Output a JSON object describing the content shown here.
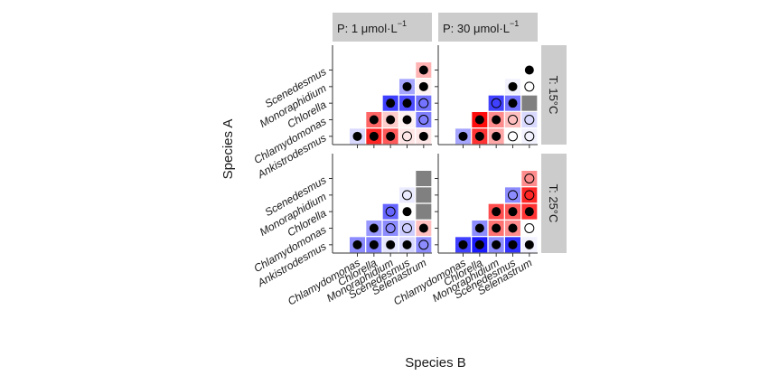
{
  "chart_data": {
    "type": "heatmap",
    "xlabel": "Species B",
    "ylabel": "Species A",
    "species": [
      "Ankistrodesmus",
      "Chlamydomonas",
      "Chlorella",
      "Monoraphidium",
      "Scenedesmus",
      "Selenastrum"
    ],
    "x_categories": [
      "Chlamydomonas",
      "Chlorella",
      "Monoraphidium",
      "Scenedesmus",
      "Selenastrum"
    ],
    "y_categories": [
      "Ankistrodesmus",
      "Chlamydomonas",
      "Chlorella",
      "Monoraphidium",
      "Scenedesmus"
    ],
    "colors": {
      "negative": "#0000ff",
      "positive": "#ff0000",
      "missing": "#808080",
      "strip": "#cccccc",
      "frame": "#333333"
    },
    "columns": [
      {
        "prefix": "P: 1 μmol·L",
        "superscript": "−1"
      },
      {
        "prefix": "P: 30 μmol·L",
        "superscript": "−1"
      }
    ],
    "rows": [
      {
        "label": "T: 15°C"
      },
      {
        "label": "T: 25°C"
      }
    ],
    "note": "each cell: x = Species B, y = Species A, value = signed interaction strength (negative blue, positive red), point = filled or open circle",
    "panels": [
      {
        "column": "P: 1 μmol·L−1",
        "row": "T: 15°C",
        "cells": [
          {
            "x": "Chlamydomonas",
            "y": "Ankistrodesmus",
            "value": -0.15,
            "point": "filled"
          },
          {
            "x": "Chlorella",
            "y": "Ankistrodesmus",
            "value": 0.85,
            "point": "filled"
          },
          {
            "x": "Monoraphidium",
            "y": "Ankistrodesmus",
            "value": 0.65,
            "point": "filled"
          },
          {
            "x": "Scenedesmus",
            "y": "Ankistrodesmus",
            "value": 0.1,
            "point": "open"
          },
          {
            "x": "Selenastrum",
            "y": "Ankistrodesmus",
            "value": 0.1,
            "point": "filled"
          },
          {
            "x": "Chlorella",
            "y": "Chlamydomonas",
            "value": 0.6,
            "point": "filled"
          },
          {
            "x": "Monoraphidium",
            "y": "Chlamydomonas",
            "value": 0.2,
            "point": "filled"
          },
          {
            "x": "Scenedesmus",
            "y": "Chlamydomonas",
            "value": 0.05,
            "point": "filled"
          },
          {
            "x": "Selenastrum",
            "y": "Chlamydomonas",
            "value": -0.5,
            "point": "open"
          },
          {
            "x": "Monoraphidium",
            "y": "Chlorella",
            "value": -0.75,
            "point": "filled"
          },
          {
            "x": "Scenedesmus",
            "y": "Chlorella",
            "value": -0.7,
            "point": "filled"
          },
          {
            "x": "Selenastrum",
            "y": "Chlorella",
            "value": -0.55,
            "point": "open"
          },
          {
            "x": "Scenedesmus",
            "y": "Monoraphidium",
            "value": -0.35,
            "point": "filled"
          },
          {
            "x": "Selenastrum",
            "y": "Monoraphidium",
            "value": 0.05,
            "point": "filled"
          },
          {
            "x": "Selenastrum",
            "y": "Scenedesmus",
            "value": 0.3,
            "point": "filled"
          }
        ]
      },
      {
        "column": "P: 30 μmol·L−1",
        "row": "T: 15°C",
        "cells": [
          {
            "x": "Chlamydomonas",
            "y": "Ankistrodesmus",
            "value": -0.35,
            "point": "filled"
          },
          {
            "x": "Chlorella",
            "y": "Ankistrodesmus",
            "value": 0.8,
            "point": "filled"
          },
          {
            "x": "Monoraphidium",
            "y": "Ankistrodesmus",
            "value": 0.35,
            "point": "filled"
          },
          {
            "x": "Scenedesmus",
            "y": "Ankistrodesmus",
            "value": 0.0,
            "point": "open"
          },
          {
            "x": "Selenastrum",
            "y": "Ankistrodesmus",
            "value": -0.05,
            "point": "open"
          },
          {
            "x": "Chlorella",
            "y": "Chlamydomonas",
            "value": 0.95,
            "point": "filled"
          },
          {
            "x": "Monoraphidium",
            "y": "Chlamydomonas",
            "value": 0.45,
            "point": "filled"
          },
          {
            "x": "Scenedesmus",
            "y": "Chlamydomonas",
            "value": 0.25,
            "point": "open"
          },
          {
            "x": "Selenastrum",
            "y": "Chlamydomonas",
            "value": -0.15,
            "point": "open"
          },
          {
            "x": "Monoraphidium",
            "y": "Chlorella",
            "value": -0.75,
            "point": "open"
          },
          {
            "x": "Scenedesmus",
            "y": "Chlorella",
            "value": -0.55,
            "point": "filled"
          },
          {
            "x": "Selenastrum",
            "y": "Chlorella",
            "value": null,
            "point": "none"
          },
          {
            "x": "Scenedesmus",
            "y": "Monoraphidium",
            "value": -0.05,
            "point": "filled"
          },
          {
            "x": "Selenastrum",
            "y": "Monoraphidium",
            "value": 0.0,
            "point": "open"
          },
          {
            "x": "Selenastrum",
            "y": "Scenedesmus",
            "value": 0.0,
            "point": "filled"
          }
        ]
      },
      {
        "column": "P: 1 μmol·L−1",
        "row": "T: 25°C",
        "cells": [
          {
            "x": "Chlamydomonas",
            "y": "Ankistrodesmus",
            "value": -0.45,
            "point": "filled"
          },
          {
            "x": "Chlorella",
            "y": "Ankistrodesmus",
            "value": -0.5,
            "point": "filled"
          },
          {
            "x": "Monoraphidium",
            "y": "Ankistrodesmus",
            "value": -0.1,
            "point": "filled"
          },
          {
            "x": "Scenedesmus",
            "y": "Ankistrodesmus",
            "value": -0.15,
            "point": "filled"
          },
          {
            "x": "Selenastrum",
            "y": "Ankistrodesmus",
            "value": -0.45,
            "point": "open"
          },
          {
            "x": "Chlorella",
            "y": "Chlamydomonas",
            "value": -0.4,
            "point": "filled"
          },
          {
            "x": "Monoraphidium",
            "y": "Chlamydomonas",
            "value": -0.45,
            "point": "open"
          },
          {
            "x": "Scenedesmus",
            "y": "Chlamydomonas",
            "value": -0.2,
            "point": "open"
          },
          {
            "x": "Selenastrum",
            "y": "Chlamydomonas",
            "value": 0.25,
            "point": "filled"
          },
          {
            "x": "Monoraphidium",
            "y": "Chlorella",
            "value": -0.6,
            "point": "open"
          },
          {
            "x": "Scenedesmus",
            "y": "Chlorella",
            "value": 0.0,
            "point": "filled"
          },
          {
            "x": "Selenastrum",
            "y": "Chlorella",
            "value": null,
            "point": "none"
          },
          {
            "x": "Scenedesmus",
            "y": "Monoraphidium",
            "value": -0.08,
            "point": "open"
          },
          {
            "x": "Selenastrum",
            "y": "Monoraphidium",
            "value": null,
            "point": "none"
          },
          {
            "x": "Selenastrum",
            "y": "Scenedesmus",
            "value": null,
            "point": "none"
          }
        ]
      },
      {
        "column": "P: 30 μmol·L−1",
        "row": "T: 25°C",
        "cells": [
          {
            "x": "Chlamydomonas",
            "y": "Ankistrodesmus",
            "value": -0.75,
            "point": "filled"
          },
          {
            "x": "Chlorella",
            "y": "Ankistrodesmus",
            "value": -0.9,
            "point": "filled"
          },
          {
            "x": "Monoraphidium",
            "y": "Ankistrodesmus",
            "value": -0.45,
            "point": "filled"
          },
          {
            "x": "Scenedesmus",
            "y": "Ankistrodesmus",
            "value": -0.8,
            "point": "filled"
          },
          {
            "x": "Selenastrum",
            "y": "Ankistrodesmus",
            "value": -0.05,
            "point": "filled"
          },
          {
            "x": "Chlorella",
            "y": "Chlamydomonas",
            "value": -0.45,
            "point": "filled"
          },
          {
            "x": "Monoraphidium",
            "y": "Chlamydomonas",
            "value": 0.55,
            "point": "filled"
          },
          {
            "x": "Scenedesmus",
            "y": "Chlamydomonas",
            "value": 0.45,
            "point": "filled"
          },
          {
            "x": "Selenastrum",
            "y": "Chlamydomonas",
            "value": 0.0,
            "point": "open"
          },
          {
            "x": "Monoraphidium",
            "y": "Chlorella",
            "value": 0.7,
            "point": "filled"
          },
          {
            "x": "Scenedesmus",
            "y": "Chlorella",
            "value": 0.65,
            "point": "filled"
          },
          {
            "x": "Selenastrum",
            "y": "Chlorella",
            "value": 0.8,
            "point": "filled"
          },
          {
            "x": "Scenedesmus",
            "y": "Monoraphidium",
            "value": -0.45,
            "point": "open"
          },
          {
            "x": "Selenastrum",
            "y": "Monoraphidium",
            "value": 0.85,
            "point": "open"
          },
          {
            "x": "Selenastrum",
            "y": "Scenedesmus",
            "value": 0.45,
            "point": "open"
          }
        ]
      }
    ]
  }
}
